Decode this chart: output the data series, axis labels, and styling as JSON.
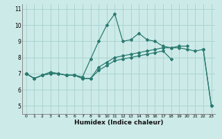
{
  "title": "",
  "xlabel": "Humidex (Indice chaleur)",
  "bg_color": "#cceae8",
  "grid_color": "#aad4d0",
  "line_color": "#2a7a70",
  "xlim": [
    -0.5,
    23.5
  ],
  "ylim": [
    4.5,
    11.3
  ],
  "xticks": [
    0,
    1,
    2,
    3,
    4,
    5,
    6,
    7,
    8,
    9,
    10,
    11,
    12,
    13,
    14,
    15,
    16,
    17,
    18,
    19,
    20,
    21,
    22,
    23
  ],
  "yticks": [
    5,
    6,
    7,
    8,
    9,
    10,
    11
  ],
  "lines": [
    [
      7.0,
      6.7,
      6.9,
      7.1,
      7.0,
      6.9,
      6.9,
      6.8,
      7.9,
      9.0,
      10.0,
      10.7,
      9.0,
      9.1,
      9.5,
      9.1,
      9.0,
      8.7,
      8.6,
      8.6,
      8.5,
      8.4,
      8.5,
      5.0
    ],
    [
      7.0,
      6.7,
      6.9,
      7.0,
      7.0,
      6.9,
      6.9,
      6.7,
      6.7,
      7.2,
      7.5,
      7.8,
      7.9,
      8.0,
      8.1,
      8.2,
      8.3,
      8.4,
      7.9,
      null,
      null,
      null,
      null,
      null
    ],
    [
      7.0,
      6.7,
      6.9,
      7.0,
      7.0,
      6.9,
      6.9,
      6.7,
      6.7,
      7.4,
      7.7,
      8.0,
      8.1,
      8.2,
      8.3,
      8.4,
      8.5,
      8.6,
      8.6,
      8.7,
      8.7,
      null,
      null,
      null
    ],
    [
      7.0,
      null,
      null,
      null,
      null,
      null,
      null,
      null,
      null,
      null,
      null,
      null,
      null,
      null,
      null,
      null,
      null,
      null,
      null,
      null,
      null,
      null,
      8.5,
      5.0
    ]
  ]
}
